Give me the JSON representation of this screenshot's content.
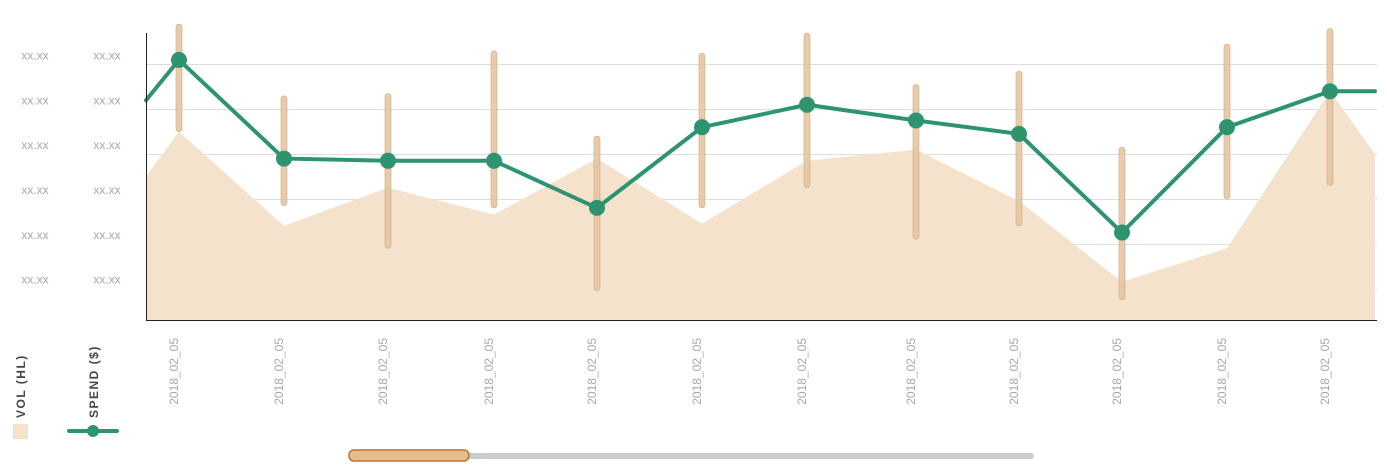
{
  "chart_data": {
    "type": "line",
    "x": [
      "2018_02_05",
      "2018_02_05",
      "2018_02_05",
      "2018_02_05",
      "2018_02_05",
      "2018_02_05",
      "2018_02_05",
      "2018_02_05",
      "2018_02_05",
      "2018_02_05",
      "2018_02_05",
      "2018_02_05"
    ],
    "left_axis_tick_labels": [
      "xx.xx",
      "xx.xx",
      "xx.xx",
      "xx.xx",
      "xx.xx",
      "xx.xx"
    ],
    "right_axis_tick_labels": [
      "xx.xx",
      "xx.xx",
      "xx.xx",
      "xx.xx",
      "xx.xx",
      "xx.xx"
    ],
    "ylim": [
      0,
      6.4
    ],
    "grid": "horizontal",
    "legend_placement": "bottom-left",
    "series": [
      {
        "name": "SPEND ($)",
        "type": "line",
        "marker": "circle",
        "color": "#2e9470",
        "values": [
          5.8,
          3.6,
          3.55,
          3.55,
          2.5,
          4.3,
          4.8,
          4.45,
          4.15,
          1.95,
          4.3,
          5.1
        ],
        "line_start": 4.9,
        "line_end": 5.1,
        "error_bars": [
          [
            4.2,
            6.6
          ],
          [
            2.55,
            5.0
          ],
          [
            1.6,
            5.05
          ],
          [
            2.5,
            6.0
          ],
          [
            0.65,
            4.1
          ],
          [
            2.5,
            5.95
          ],
          [
            2.95,
            6.4
          ],
          [
            1.8,
            5.25
          ],
          [
            2.1,
            5.55
          ],
          [
            0.45,
            3.85
          ],
          [
            2.7,
            6.15
          ],
          [
            3.0,
            6.5
          ]
        ]
      },
      {
        "name": "VOL (HL)",
        "type": "area",
        "color": "#f5e2cc",
        "values": [
          4.2,
          2.1,
          2.95,
          2.35,
          3.6,
          2.15,
          3.55,
          3.8,
          2.65,
          0.85,
          1.6,
          5.1
        ],
        "area_start": 3.2,
        "area_end": 3.7
      }
    ]
  },
  "legend": {
    "vol_label": "VOL (HL)",
    "spend_label": "SPEND ($)"
  },
  "scrollbar": {
    "visible_fraction": 0.175,
    "position": 0.0
  },
  "colors": {
    "spend_line": "#2e9470",
    "volume_area": "#f5e2cc",
    "error_bar": "#e2c39e",
    "grid": "#dddddd",
    "axis": "#222222",
    "tick_text": "#a8a8a8",
    "legend_text": "#444444",
    "scroll_track": "#cccccc",
    "scroll_thumb": "#e7bd8c"
  }
}
